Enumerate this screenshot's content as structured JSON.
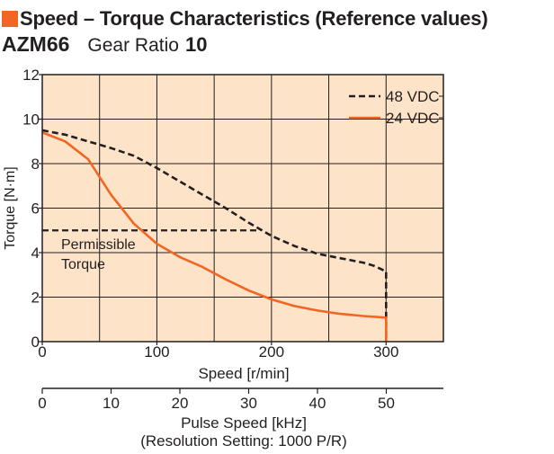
{
  "header": {
    "title": "Speed – Torque Characteristics (Reference values)",
    "model": "AZM66",
    "gear_label": "Gear Ratio",
    "gear_value": "10"
  },
  "colors": {
    "accent": "#f26522",
    "series_48": "#231f20",
    "series_24": "#f26522",
    "plot_background": "#fde3c8",
    "grid": "#231f20"
  },
  "chart_data": {
    "type": "line",
    "xlabel": "Speed [r/min]",
    "ylabel": "Torque [N·m]",
    "xlim": [
      0,
      350
    ],
    "ylim": [
      0,
      12
    ],
    "x_ticks": [
      0,
      100,
      200,
      300
    ],
    "y_ticks": [
      0,
      2,
      4,
      6,
      8,
      10,
      12
    ],
    "grid": true,
    "legend_position": "top-right",
    "secondary_axis": {
      "xlabel": "Pulse Speed [kHz]",
      "xlabel_note": "(Resolution Setting: 1000 P/R)",
      "xlim": [
        0,
        58.3
      ],
      "ticks": [
        0,
        10,
        20,
        30,
        40,
        50
      ]
    },
    "series": [
      {
        "name": "48 VDC",
        "style": "dashed",
        "color": "#231f20",
        "x": [
          0,
          20,
          40,
          60,
          80,
          100,
          120,
          140,
          160,
          180,
          200,
          220,
          240,
          260,
          280,
          290,
          300,
          300
        ],
        "y": [
          9.5,
          9.3,
          9.0,
          8.7,
          8.35,
          7.8,
          7.2,
          6.6,
          6.0,
          5.35,
          4.75,
          4.3,
          3.95,
          3.75,
          3.55,
          3.4,
          3.15,
          0
        ]
      },
      {
        "name": "24 VDC",
        "style": "solid",
        "color": "#f26522",
        "x": [
          0,
          20,
          40,
          60,
          80,
          100,
          120,
          140,
          160,
          180,
          200,
          220,
          240,
          260,
          280,
          300,
          300
        ],
        "y": [
          9.4,
          9.0,
          8.2,
          6.6,
          5.3,
          4.4,
          3.8,
          3.35,
          2.8,
          2.3,
          1.9,
          1.6,
          1.4,
          1.25,
          1.15,
          1.08,
          0
        ]
      }
    ],
    "annotations": [
      {
        "text_lines": [
          "Permissible",
          "Torque"
        ],
        "style": "dashed",
        "line_y": 5,
        "line_x_range": [
          0,
          190
        ]
      }
    ]
  }
}
